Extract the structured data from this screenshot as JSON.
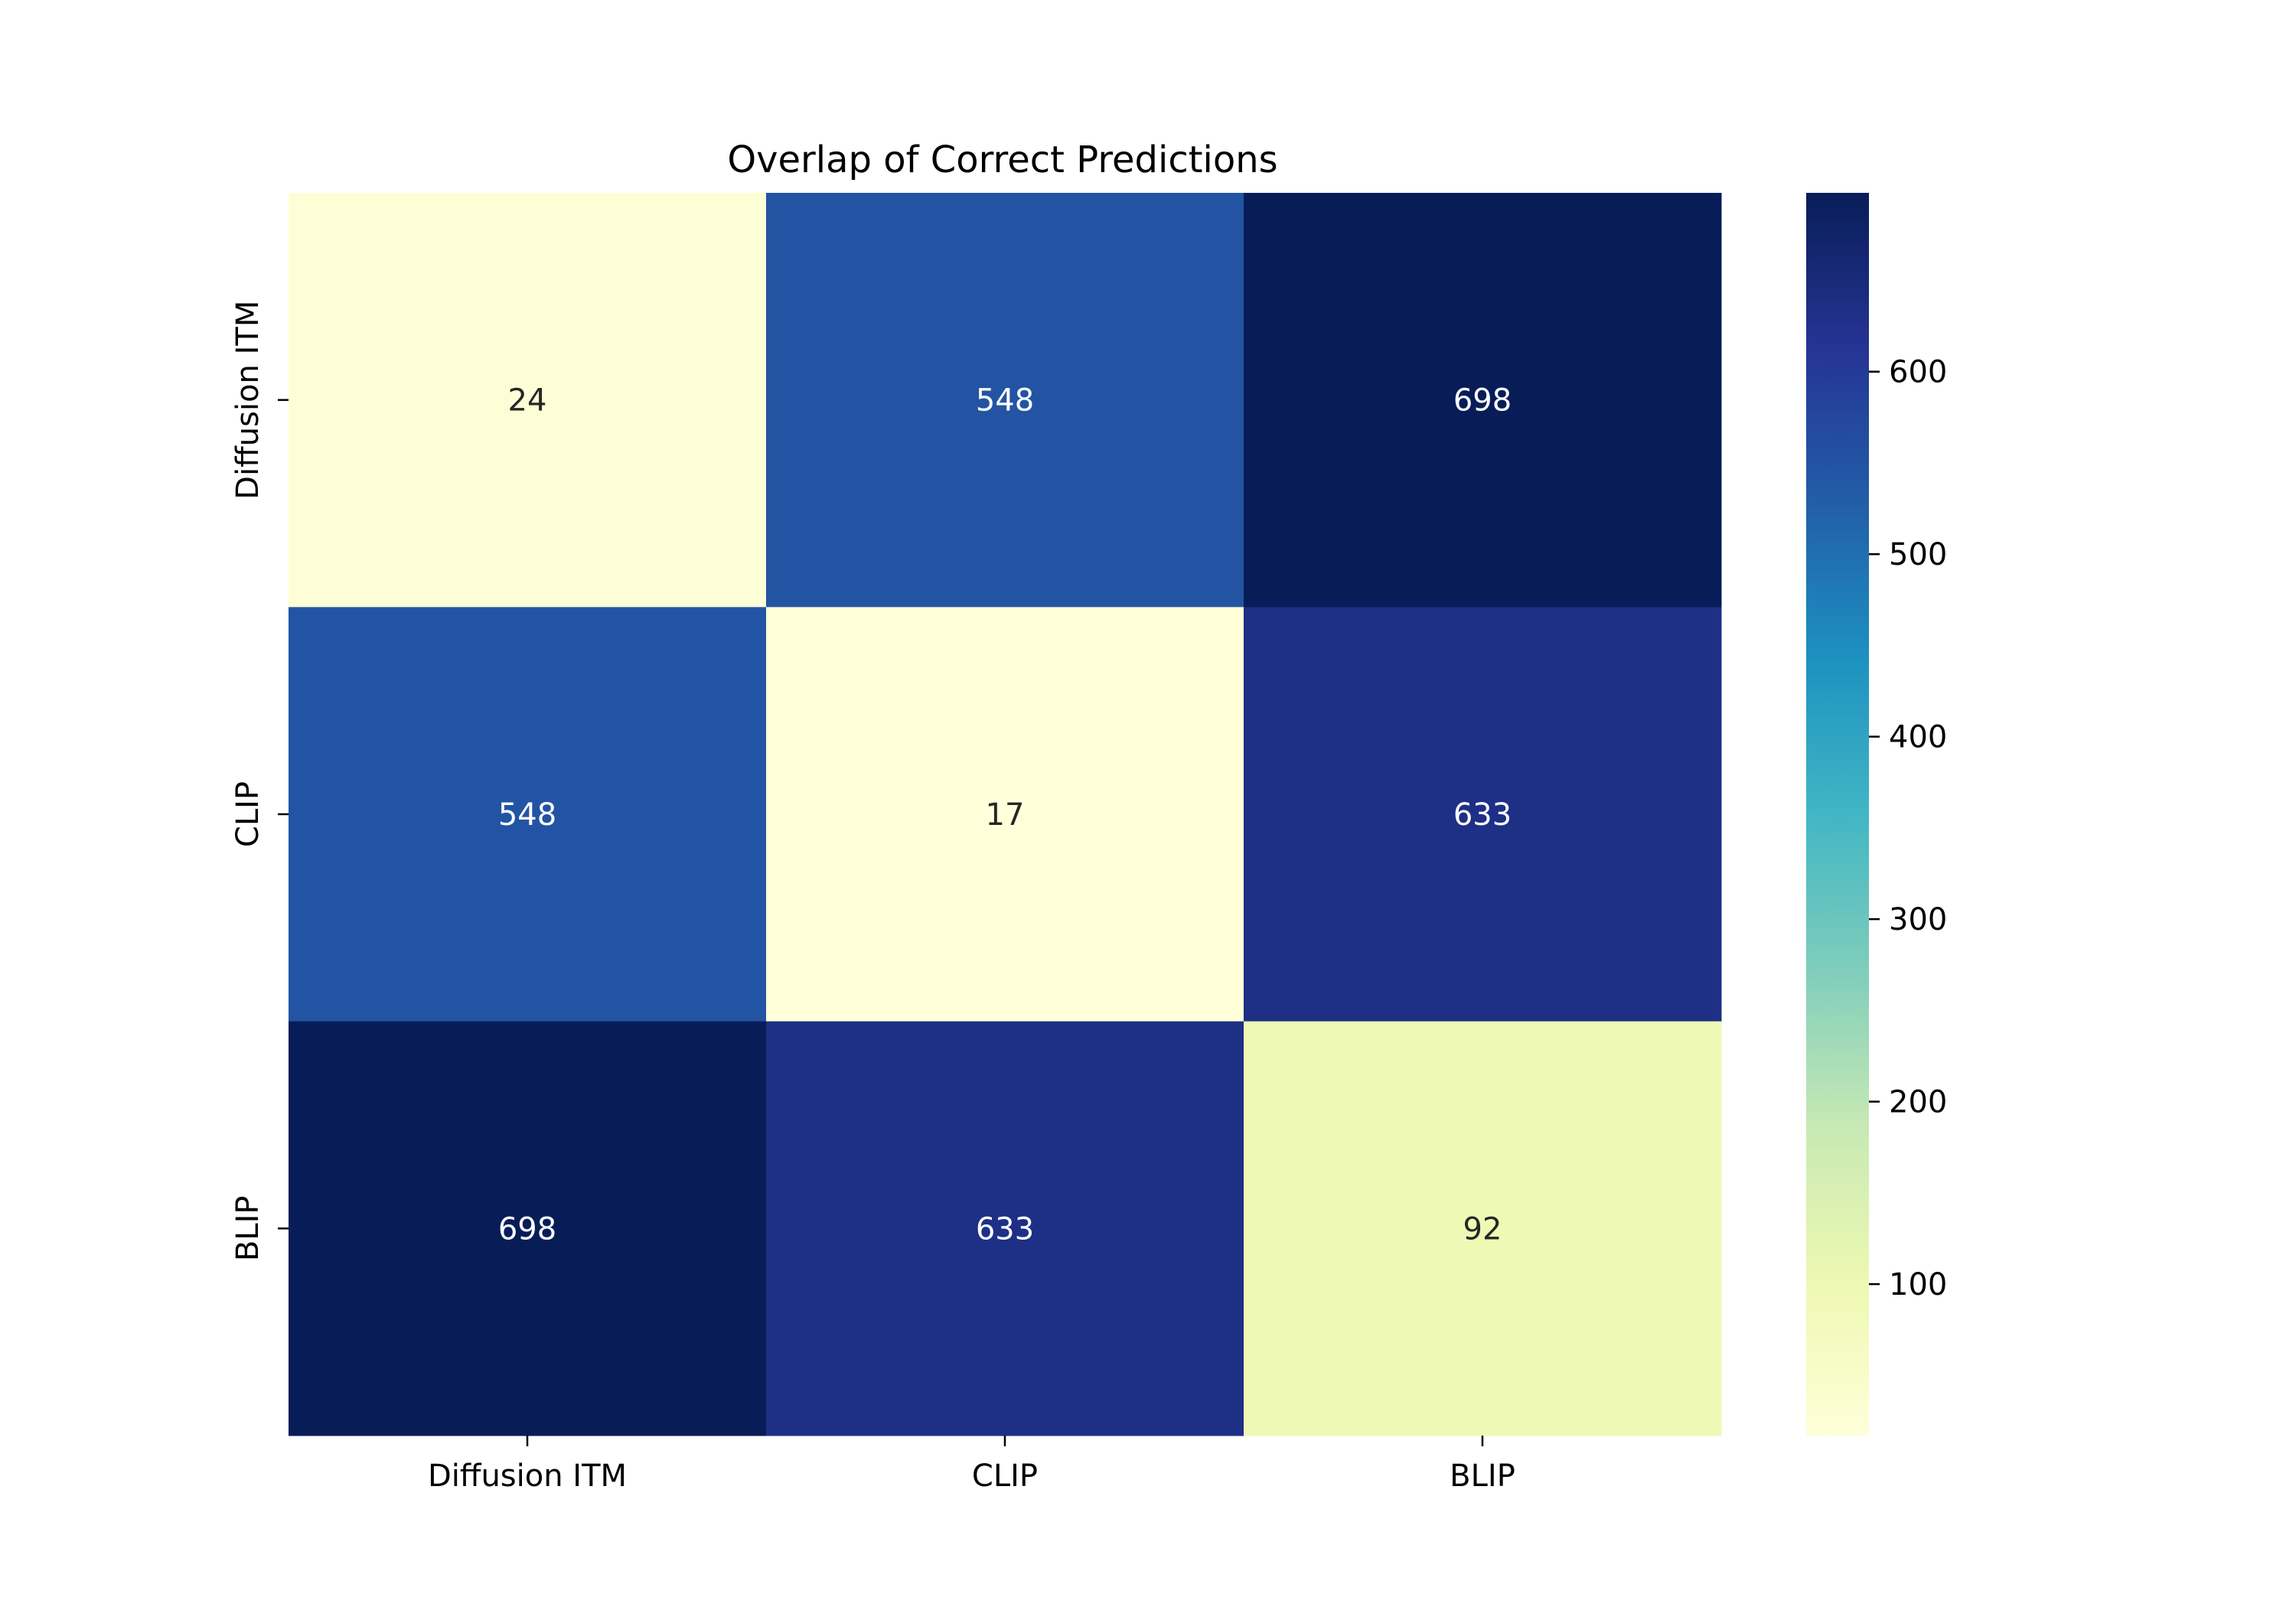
{
  "chart_data": {
    "type": "heatmap",
    "title": "Overlap of Correct Predictions",
    "xlabel": "",
    "ylabel": "",
    "x_categories": [
      "Diffusion ITM",
      "CLIP",
      "BLIP"
    ],
    "y_categories": [
      "Diffusion ITM",
      "CLIP",
      "BLIP"
    ],
    "values": [
      [
        24,
        548,
        698
      ],
      [
        548,
        17,
        633
      ],
      [
        698,
        633,
        92
      ]
    ],
    "colormap": "YlGnBu",
    "colorbar": {
      "range": [
        17,
        698
      ],
      "ticks": [
        100,
        200,
        300,
        400,
        500,
        600
      ],
      "tick_labels": [
        "100",
        "200",
        "300",
        "400",
        "500",
        "600"
      ]
    },
    "annotations": true,
    "grid": false
  }
}
